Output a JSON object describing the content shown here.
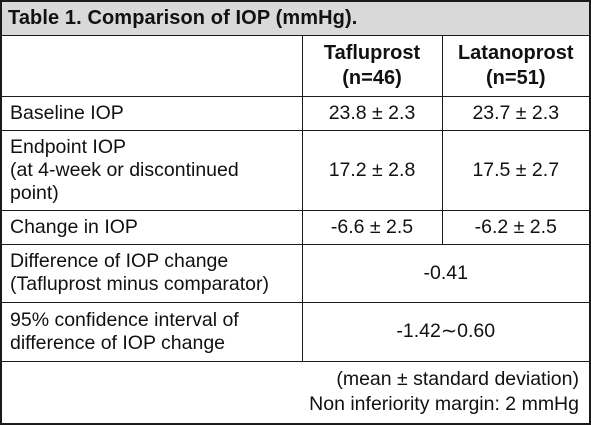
{
  "title": "Table 1. Comparison of IOP (mmHg).",
  "columns": {
    "a": {
      "name": "Tafluprost",
      "n": "(n=46)"
    },
    "b": {
      "name": "Latanoprost",
      "n": "(n=51)"
    }
  },
  "rows": {
    "baseline": {
      "label": "Baseline IOP",
      "a": "23.8 ± 2.3",
      "b": "23.7 ± 2.3"
    },
    "endpoint": {
      "label_lines": [
        "Endpoint IOP",
        "(at 4-week or discontinued",
        "point)"
      ],
      "a": "17.2 ± 2.8",
      "b": "17.5 ± 2.7"
    },
    "change": {
      "label": "Change in IOP",
      "a": "-6.6 ± 2.5",
      "b": "-6.2 ± 2.5"
    },
    "difference": {
      "label_lines": [
        "Difference of IOP change",
        "(Tafluprost minus comparator)"
      ],
      "value": "-0.41"
    },
    "ci": {
      "label_lines": [
        "95% confidence interval of",
        "difference of IOP change"
      ],
      "value": "-1.42∼0.60"
    }
  },
  "footer": {
    "line1": "(mean ± standard deviation)",
    "line2": "Non inferiority margin: 2 mmHg"
  }
}
